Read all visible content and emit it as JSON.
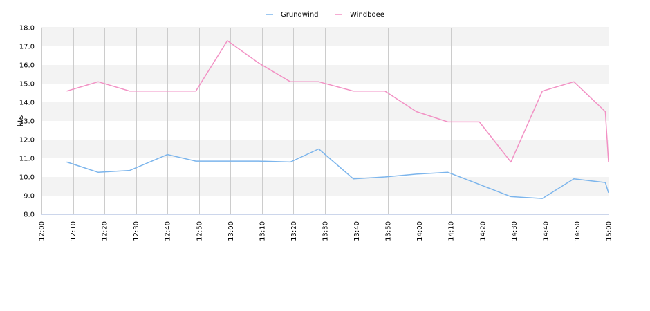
{
  "chart_data": {
    "type": "line",
    "x": [
      "12:08",
      "12:18",
      "12:28",
      "12:40",
      "12:49",
      "12:59",
      "13:09",
      "13:19",
      "13:28",
      "13:39",
      "13:49",
      "13:59",
      "14:09",
      "14:19",
      "14:29",
      "14:39",
      "14:49",
      "14:59",
      "15:00"
    ],
    "series": [
      {
        "name": "Grundwind",
        "color": "#7cb5ec",
        "values": [
          10.8,
          10.25,
          10.35,
          11.2,
          10.85,
          10.85,
          10.85,
          10.8,
          11.5,
          9.9,
          10.0,
          10.15,
          10.25,
          9.6,
          8.95,
          8.85,
          9.9,
          9.7,
          9.15
        ]
      },
      {
        "name": "Windboee",
        "color": "#f291c4",
        "values": [
          14.6,
          15.1,
          14.6,
          14.6,
          14.6,
          17.3,
          16.1,
          15.1,
          15.1,
          14.6,
          14.6,
          13.5,
          12.95,
          12.95,
          10.8,
          14.6,
          15.1,
          13.5,
          10.8
        ]
      }
    ],
    "xticks": [
      "12:00",
      "12:10",
      "12:20",
      "12:30",
      "12:40",
      "12:50",
      "13:00",
      "13:10",
      "13:20",
      "13:30",
      "13:40",
      "13:50",
      "14:00",
      "14:10",
      "14:20",
      "14:30",
      "14:40",
      "14:50",
      "15:00"
    ],
    "yticks": [
      "8.0",
      "9.0",
      "10.0",
      "11.0",
      "12.0",
      "13.0",
      "14.0",
      "15.0",
      "16.0",
      "17.0",
      "18.0"
    ],
    "xlim": [
      "12:00",
      "15:00"
    ],
    "ylim": [
      8,
      18
    ],
    "ylabel": "kts",
    "xlabel": "",
    "title": "",
    "legend_position": "top-center",
    "band_color": "#f3f3f3",
    "grid": true
  }
}
